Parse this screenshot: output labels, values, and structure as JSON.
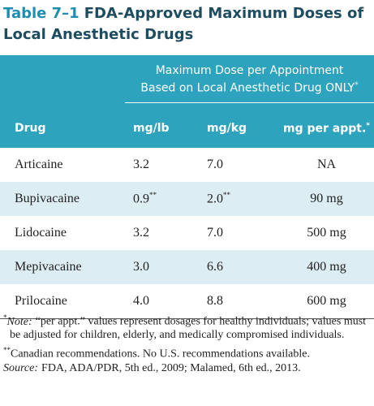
{
  "title": {
    "number": "Table 7–1",
    "text": "FDA-Approved Maximum Doses of Local Anesthetic Drugs"
  },
  "table": {
    "group_header": {
      "lines": [
        "Maximum Dose per Appointment",
        "Based on Local Anesthetic Drug ONLY"
      ],
      "sup": "*"
    },
    "columns": [
      "Drug",
      "mg/lb",
      "mg/kg",
      {
        "text": "mg per appt.",
        "sup": "*"
      }
    ],
    "rows": [
      [
        "Articaine",
        "3.2",
        "7.0",
        "NA"
      ],
      [
        "Bupivacaine",
        {
          "text": "0.9",
          "sup": "**"
        },
        {
          "text": "2.0",
          "sup": "**"
        },
        "90 mg"
      ],
      [
        "Lidocaine",
        "3.2",
        "7.0",
        "500 mg"
      ],
      [
        "Mepivacaine",
        "3.0",
        "6.6",
        "400 mg"
      ],
      [
        "Prilocaine",
        "4.0",
        "8.8",
        "600 mg"
      ]
    ]
  },
  "footnotes": [
    {
      "marker": "*",
      "label": "Note:",
      "text": "“per appt.” values represent dosages for healthy individuals; values must be adjusted for children, elderly, and medically compromised individuals."
    },
    {
      "marker": "**",
      "text": "Canadian recommendations. No U.S. recommendations available."
    }
  ],
  "source": {
    "label": "Source:",
    "text": "FDA, ADA/PDR, 5th ed., 2009; Malamed, 6th ed., 2013."
  }
}
